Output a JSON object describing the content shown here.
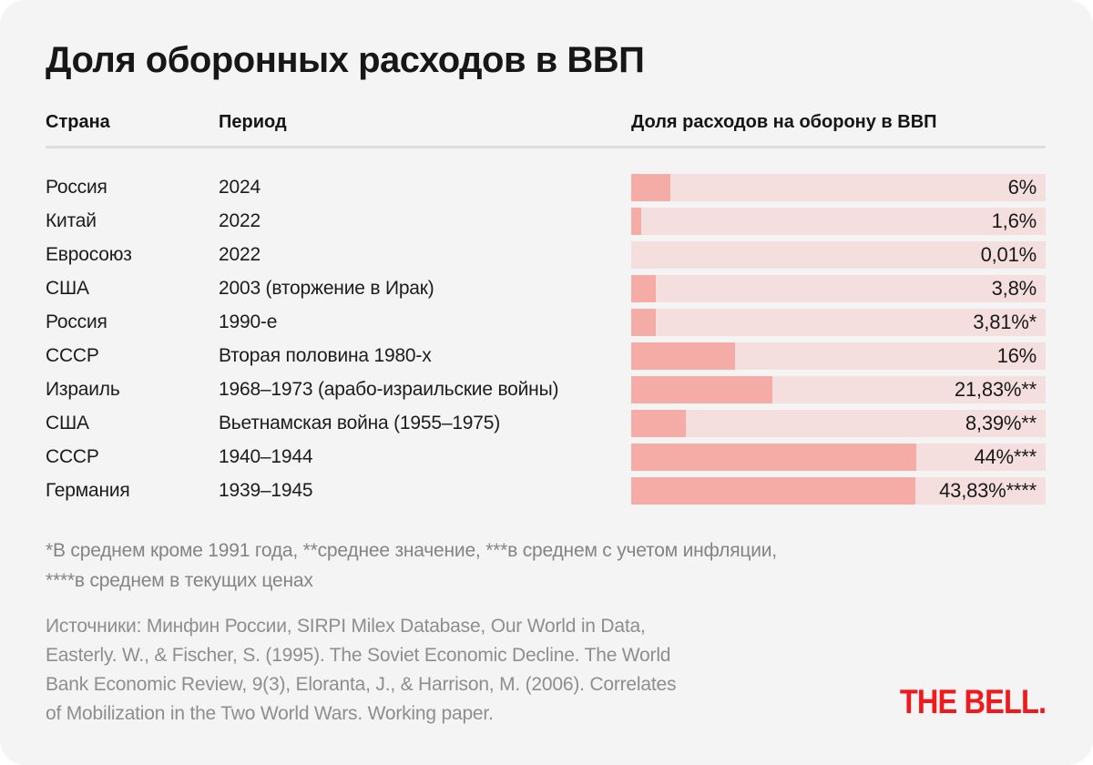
{
  "page": {
    "background": "#ffffff",
    "card_background": "#f5f4f5"
  },
  "card": {
    "title": "Доля оборонных расходов в ВВП",
    "columns": {
      "country": "Страна",
      "period": "Период",
      "share": "Доля расходов на оборону в ВВП"
    },
    "rows": [
      {
        "country": "Россия",
        "period": "2024",
        "label": "6%",
        "value": 6
      },
      {
        "country": "Китай",
        "period": "2022",
        "label": "1,6%",
        "value": 1.6
      },
      {
        "country": "Евросоюз",
        "period": "2022",
        "label": "0,01%",
        "value": 0.01
      },
      {
        "country": "США",
        "period": "2003 (вторжение в Ирак)",
        "label": "3,8%",
        "value": 3.8
      },
      {
        "country": "Россия",
        "period": "1990-е",
        "label": "3,81%*",
        "value": 3.81
      },
      {
        "country": "СССР",
        "period": "Вторая половина 1980-х",
        "label": "16%",
        "value": 16
      },
      {
        "country": "Израиль",
        "period": "1968–1973 (арабо-израильские войны)",
        "label": "21,83%**",
        "value": 21.83
      },
      {
        "country": "США",
        "period": "Вьетнамская война (1955–1975)",
        "label": "8,39%**",
        "value": 8.39
      },
      {
        "country": "СССР",
        "period": "1940–1944",
        "label": "44%***",
        "value": 44
      },
      {
        "country": "Германия",
        "period": "1939–1945",
        "label": "43,83%****",
        "value": 43.83
      }
    ],
    "footnote_lines": [
      "*В среднем кроме 1991 года, **среднее значение, ***в среднем с учетом инфляции,",
      "****в среднем в текущих ценах"
    ],
    "source_lines": [
      "Источники: Минфин России, SIRPI Milex Database, Our World in Data,",
      "Easterly. W., & Fischer, S. (1995). The Soviet Economic Decline. The World",
      "Bank Economic Review, 9(3), Eloranta, J., & Harrison, M. (2006). Correlates",
      "of Mobilization in the Two World Wars. Working paper."
    ],
    "logo_text": "THE BELL.",
    "colors": {
      "bar_fill": "#f5aba6",
      "bar_track": "#f5dfde",
      "logo_red": "#f01a1e",
      "text_dark": "#1b1b1b",
      "text_gray": "#848484",
      "divider": "#dcdcdc"
    }
  },
  "chart_data": {
    "type": "bar",
    "orientation": "horizontal",
    "title": "Доля оборонных расходов в ВВП",
    "categories": [
      "Россия — 2024",
      "Китай — 2022",
      "Евросоюз — 2022",
      "США — 2003 (вторжение в Ирак)",
      "Россия — 1990-е",
      "СССР — Вторая половина 1980-х",
      "Израиль — 1968–1973 (арабо-израильские войны)",
      "США — Вьетнамская война (1955–1975)",
      "СССР — 1940–1944",
      "Германия — 1939–1945"
    ],
    "values": [
      6,
      1.6,
      0.01,
      3.8,
      3.81,
      16,
      21.83,
      8.39,
      44,
      43.83
    ],
    "value_labels": [
      "6%",
      "1,6%",
      "0,01%",
      "3,8%",
      "3,81%*",
      "16%",
      "21,83%**",
      "8,39%**",
      "44%***",
      "43,83%****"
    ],
    "xlabel": "Доля расходов на оборону в ВВП",
    "ylabel": "",
    "xlim": [
      0,
      64
    ],
    "grid": false,
    "legend": false
  }
}
